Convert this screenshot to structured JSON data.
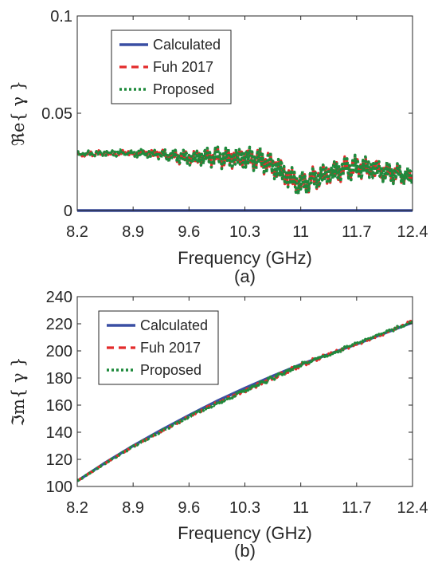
{
  "chart_data": [
    {
      "type": "line",
      "caption": "(a)",
      "xlabel": "Frequency (GHz)",
      "ylabel": "ℜe{ γ }",
      "xlim": [
        8.2,
        12.4
      ],
      "ylim": [
        0,
        0.1
      ],
      "xticks": [
        "8.2",
        "8.9",
        "9.6",
        "10.3",
        "11",
        "11.7",
        "12.4"
      ],
      "yticks": [
        "0",
        "0.05",
        "0.1"
      ],
      "grid": false,
      "legend_location": "top-left",
      "series": [
        {
          "name": "Calculated",
          "color": "#3a4fa3",
          "style": "solid",
          "x": [
            8.2,
            12.4
          ],
          "y": [
            0,
            0
          ]
        },
        {
          "name": "Fuh 2017",
          "color": "#e32b2b",
          "style": "dashed",
          "x": [
            8.2,
            8.5,
            8.9,
            9.2,
            9.6,
            9.9,
            10.1,
            10.3,
            10.5,
            10.7,
            10.85,
            11.0,
            11.2,
            11.4,
            11.6,
            11.8,
            12.0,
            12.2,
            12.4
          ],
          "y": [
            0.029,
            0.0295,
            0.0295,
            0.029,
            0.027,
            0.0275,
            0.027,
            0.027,
            0.026,
            0.022,
            0.017,
            0.0135,
            0.017,
            0.0195,
            0.022,
            0.022,
            0.0205,
            0.019,
            0.017
          ],
          "ripple": [
            0.0012,
            0.0015,
            0.0018,
            0.0025,
            0.004,
            0.005,
            0.0055,
            0.006,
            0.006,
            0.0065,
            0.0065,
            0.006,
            0.006,
            0.006,
            0.006,
            0.006,
            0.0055,
            0.005,
            0.0045
          ]
        },
        {
          "name": "Proposed",
          "color": "#1e8a3c",
          "style": "dotted",
          "x": [
            8.2,
            8.5,
            8.9,
            9.2,
            9.6,
            9.9,
            10.1,
            10.3,
            10.5,
            10.7,
            10.85,
            11.0,
            11.2,
            11.4,
            11.6,
            11.8,
            12.0,
            12.2,
            12.4
          ],
          "y": [
            0.029,
            0.0295,
            0.0295,
            0.029,
            0.027,
            0.0275,
            0.027,
            0.027,
            0.026,
            0.022,
            0.017,
            0.0135,
            0.017,
            0.0195,
            0.022,
            0.022,
            0.0205,
            0.019,
            0.017
          ],
          "ripple": [
            0.0012,
            0.0015,
            0.0018,
            0.0025,
            0.004,
            0.005,
            0.0055,
            0.006,
            0.006,
            0.0065,
            0.0065,
            0.006,
            0.006,
            0.006,
            0.006,
            0.006,
            0.0055,
            0.005,
            0.0045
          ]
        }
      ]
    },
    {
      "type": "line",
      "caption": "(b)",
      "xlabel": "Frequency (GHz)",
      "ylabel": "ℑm{ γ }",
      "xlim": [
        8.2,
        12.4
      ],
      "ylim": [
        100,
        240
      ],
      "xticks": [
        "8.2",
        "8.9",
        "9.6",
        "10.3",
        "11",
        "11.7",
        "12.4"
      ],
      "yticks": [
        "100",
        "120",
        "140",
        "160",
        "180",
        "200",
        "220",
        "240"
      ],
      "grid": false,
      "legend_location": "top-left",
      "series": [
        {
          "name": "Calculated",
          "color": "#3a4fa3",
          "style": "solid",
          "x": [
            8.2,
            8.55,
            8.9,
            9.25,
            9.6,
            9.95,
            10.3,
            10.65,
            11.0,
            11.35,
            11.7,
            12.05,
            12.4
          ],
          "y": [
            104,
            117.5,
            130,
            141.5,
            152.5,
            163,
            172.5,
            181.5,
            190,
            197.5,
            205,
            213,
            221
          ]
        },
        {
          "name": "Fuh 2017",
          "color": "#e32b2b",
          "style": "dashed",
          "x": [
            8.2,
            8.55,
            8.9,
            9.25,
            9.6,
            9.95,
            10.3,
            10.65,
            11.0,
            11.35,
            11.7,
            12.05,
            12.4
          ],
          "y": [
            104,
            117,
            129.5,
            140.5,
            151.5,
            161.5,
            170.5,
            180,
            189.5,
            197.5,
            205,
            213,
            222
          ],
          "ripple": [
            0.3,
            0.4,
            0.5,
            0.6,
            0.8,
            1.0,
            1.4,
            1.6,
            1.5,
            1.2,
            1.1,
            1.0,
            0.9
          ]
        },
        {
          "name": "Proposed",
          "color": "#1e8a3c",
          "style": "dotted",
          "x": [
            8.2,
            8.55,
            8.9,
            9.25,
            9.6,
            9.95,
            10.3,
            10.65,
            11.0,
            11.35,
            11.7,
            12.05,
            12.4
          ],
          "y": [
            104,
            117,
            129.5,
            140.5,
            151.5,
            161.5,
            170.5,
            180,
            189.5,
            197.5,
            205,
            213,
            222
          ],
          "ripple": [
            0.3,
            0.4,
            0.5,
            0.6,
            0.8,
            1.0,
            1.4,
            1.6,
            1.5,
            1.2,
            1.1,
            1.0,
            0.9
          ]
        }
      ]
    }
  ]
}
